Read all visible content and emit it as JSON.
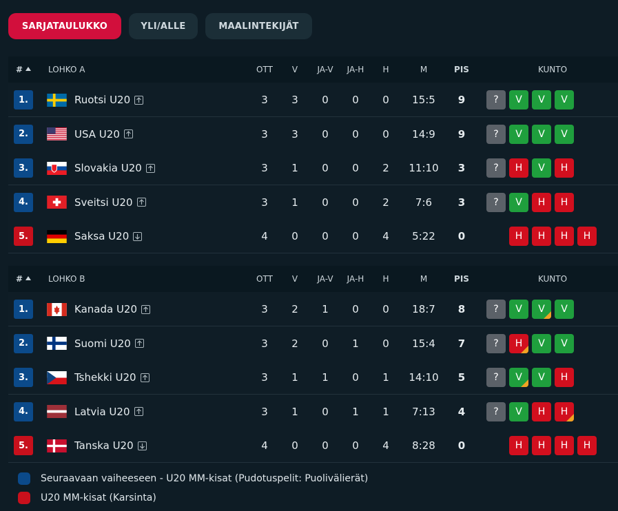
{
  "tabs": [
    "SARJATAULUKKO",
    "YLI/ALLE",
    "MAALINTEKIJÄT"
  ],
  "groups": [
    {
      "header": [
        "#",
        "LOHKO A",
        "OTT",
        "V",
        "JA-V",
        "JA-H",
        "H",
        "M",
        "PIS",
        "KUNTO"
      ],
      "rows": [
        {
          "rank": "1.",
          "team": "Ruotsi U20",
          "stats": [
            3,
            3,
            0,
            0,
            0,
            "15:5",
            9
          ],
          "form": [
            {
              "result": "?"
            },
            {
              "result": "V"
            },
            {
              "result": "V"
            },
            {
              "result": "V"
            }
          ]
        },
        {
          "rank": "2.",
          "team": "USA U20",
          "stats": [
            3,
            3,
            0,
            0,
            0,
            "14:9",
            9
          ],
          "form": [
            {
              "result": "?"
            },
            {
              "result": "V"
            },
            {
              "result": "V"
            },
            {
              "result": "V"
            }
          ]
        },
        {
          "rank": "3.",
          "team": "Slovakia U20",
          "stats": [
            3,
            1,
            0,
            0,
            2,
            "11:10",
            3
          ],
          "form": [
            {
              "result": "?"
            },
            {
              "result": "H"
            },
            {
              "result": "V"
            },
            {
              "result": "H"
            }
          ]
        },
        {
          "rank": "4.",
          "team": "Sveitsi U20",
          "stats": [
            3,
            1,
            0,
            0,
            2,
            "7:6",
            3
          ],
          "form": [
            {
              "result": "?"
            },
            {
              "result": "V"
            },
            {
              "result": "H"
            },
            {
              "result": "H"
            }
          ]
        },
        {
          "rank": "5.",
          "team": "Saksa U20",
          "stats": [
            4,
            0,
            0,
            0,
            4,
            "5:22",
            0
          ],
          "form": [
            {
              "result": "H"
            },
            {
              "result": "H"
            },
            {
              "result": "H"
            },
            {
              "result": "H"
            }
          ]
        }
      ]
    },
    {
      "header": [
        "#",
        "LOHKO B",
        "OTT",
        "V",
        "JA-V",
        "JA-H",
        "H",
        "M",
        "PIS",
        "KUNTO"
      ],
      "rows": [
        {
          "rank": "1.",
          "team": "Kanada U20",
          "stats": [
            3,
            2,
            1,
            0,
            0,
            "18:7",
            8
          ],
          "form": [
            {
              "result": "?"
            },
            {
              "result": "V"
            },
            {
              "result": "V",
              "overtime": true
            },
            {
              "result": "V"
            }
          ]
        },
        {
          "rank": "2.",
          "team": "Suomi U20",
          "stats": [
            3,
            2,
            0,
            1,
            0,
            "15:4",
            7
          ],
          "form": [
            {
              "result": "?"
            },
            {
              "result": "H",
              "overtime": true
            },
            {
              "result": "V"
            },
            {
              "result": "V"
            }
          ]
        },
        {
          "rank": "3.",
          "team": "Tshekki U20",
          "stats": [
            3,
            1,
            1,
            0,
            1,
            "14:10",
            5
          ],
          "form": [
            {
              "result": "?"
            },
            {
              "result": "V",
              "overtime": true
            },
            {
              "result": "V"
            },
            {
              "result": "H"
            }
          ]
        },
        {
          "rank": "4.",
          "team": "Latvia U20",
          "stats": [
            3,
            1,
            0,
            1,
            1,
            "7:13",
            4
          ],
          "form": [
            {
              "result": "?"
            },
            {
              "result": "V"
            },
            {
              "result": "H"
            },
            {
              "result": "H",
              "overtime": true
            }
          ]
        },
        {
          "rank": "5.",
          "team": "Tanska U20",
          "stats": [
            4,
            0,
            0,
            0,
            4,
            "8:28",
            0
          ],
          "form": [
            {
              "result": "H"
            },
            {
              "result": "H"
            },
            {
              "result": "H"
            },
            {
              "result": "H"
            }
          ]
        }
      ]
    }
  ],
  "legend": [
    "Seuraavaan vaiheeseen - U20 MM-kisat (Pudotuspelit: Puolivälierät)",
    "U20 MM-kisat (Karsinta)"
  ]
}
